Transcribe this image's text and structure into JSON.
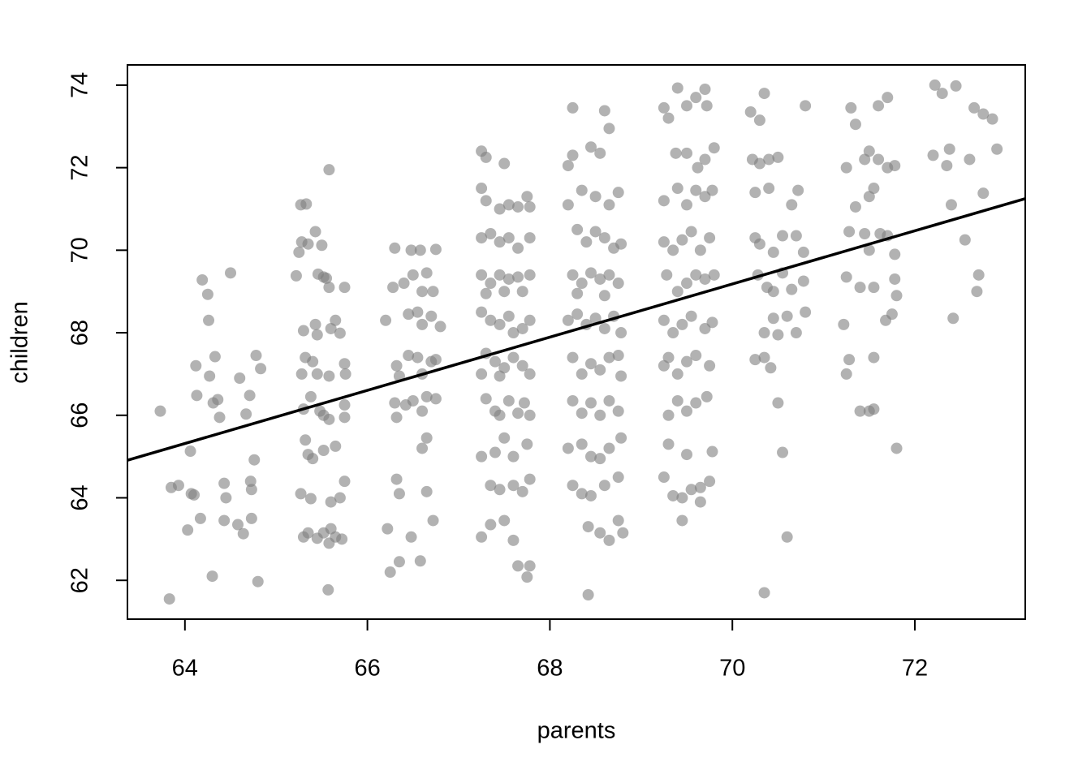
{
  "chart_data": {
    "type": "scatter",
    "x_label": "parents",
    "y_label": "children",
    "xlim": [
      63.37,
      73.21
    ],
    "ylim": [
      61.06,
      74.49
    ],
    "xticks": [
      64,
      66,
      68,
      70,
      72
    ],
    "yticks": [
      62,
      64,
      66,
      68,
      70,
      72,
      74
    ],
    "color": "#7f7f7f",
    "x": [
      63.73,
      63.83,
      63.85,
      63.93,
      64.03,
      64.06,
      64.07,
      64.1,
      64.12,
      64.13,
      64.17,
      64.19,
      64.25,
      64.26,
      64.27,
      64.3,
      64.31,
      64.33,
      64.36,
      64.38,
      64.43,
      64.45,
      64.43,
      64.5,
      64.6,
      64.58,
      64.64,
      64.67,
      64.71,
      64.72,
      64.73,
      64.73,
      64.76,
      64.78,
      64.8,
      64.83,
      65.27,
      65.33,
      65.28,
      65.25,
      65.22,
      65.35,
      65.43,
      65.5,
      65.46,
      65.52,
      65.55,
      65.58,
      65.75,
      65.58,
      65.3,
      65.43,
      65.45,
      65.6,
      65.65,
      65.7,
      65.32,
      65.4,
      65.28,
      65.45,
      65.58,
      65.75,
      65.76,
      65.3,
      65.38,
      65.48,
      65.52,
      65.58,
      65.75,
      65.75,
      65.32,
      65.35,
      65.4,
      65.52,
      65.65,
      65.27,
      65.38,
      65.6,
      65.7,
      65.75,
      65.3,
      65.35,
      65.45,
      65.52,
      65.6,
      65.65,
      65.72,
      65.58,
      65.57,
      66.3,
      66.48,
      66.58,
      66.75,
      66.28,
      66.4,
      66.5,
      66.6,
      66.65,
      66.72,
      66.2,
      66.45,
      66.55,
      66.6,
      66.7,
      66.8,
      66.32,
      66.45,
      66.55,
      66.6,
      66.7,
      66.75,
      66.35,
      66.3,
      66.42,
      66.5,
      66.6,
      66.65,
      66.75,
      66.32,
      66.6,
      66.65,
      66.32,
      66.35,
      66.65,
      66.22,
      66.48,
      66.72,
      66.35,
      66.25,
      66.58,
      67.25,
      67.3,
      67.5,
      67.25,
      67.3,
      67.45,
      67.55,
      67.65,
      67.75,
      67.78,
      67.25,
      67.35,
      67.45,
      67.55,
      67.65,
      67.78,
      67.25,
      67.35,
      67.45,
      67.55,
      67.65,
      67.7,
      67.78,
      67.3,
      67.5,
      67.25,
      67.35,
      67.45,
      67.55,
      67.6,
      67.7,
      67.78,
      67.3,
      67.4,
      67.5,
      67.6,
      67.7,
      67.78,
      67.25,
      67.45,
      67.3,
      67.4,
      67.45,
      67.55,
      67.65,
      67.72,
      67.78,
      67.25,
      67.4,
      67.5,
      67.6,
      67.75,
      67.35,
      67.45,
      67.6,
      67.7,
      67.78,
      67.25,
      67.35,
      67.5,
      67.6,
      67.65,
      67.75,
      67.78,
      68.25,
      68.6,
      68.65,
      68.2,
      68.25,
      68.45,
      68.55,
      68.2,
      68.35,
      68.5,
      68.65,
      68.75,
      68.3,
      68.4,
      68.5,
      68.6,
      68.7,
      68.78,
      68.25,
      68.35,
      68.45,
      68.55,
      68.65,
      68.75,
      68.3,
      68.6,
      68.2,
      68.3,
      68.4,
      68.5,
      68.6,
      68.7,
      68.78,
      68.25,
      68.35,
      68.45,
      68.55,
      68.65,
      68.75,
      68.78,
      68.25,
      68.35,
      68.45,
      68.55,
      68.65,
      68.75,
      68.2,
      68.35,
      68.45,
      68.55,
      68.65,
      68.78,
      68.25,
      68.35,
      68.45,
      68.6,
      68.75,
      68.42,
      68.55,
      68.65,
      68.75,
      68.8,
      68.42,
      69.4,
      69.7,
      69.25,
      69.3,
      69.5,
      69.6,
      69.72,
      69.38,
      69.5,
      69.62,
      69.7,
      69.8,
      69.25,
      69.4,
      69.5,
      69.6,
      69.7,
      69.78,
      69.25,
      69.35,
      69.45,
      69.55,
      69.65,
      69.75,
      69.28,
      69.4,
      69.5,
      69.6,
      69.7,
      69.8,
      69.25,
      69.35,
      69.45,
      69.55,
      69.7,
      69.78,
      69.25,
      69.3,
      69.4,
      69.5,
      69.6,
      69.75,
      69.3,
      69.4,
      69.5,
      69.6,
      69.72,
      69.3,
      69.5,
      69.78,
      69.25,
      69.35,
      69.45,
      69.55,
      69.65,
      69.75,
      69.65,
      69.45,
      70.2,
      70.35,
      70.3,
      70.8,
      70.22,
      70.3,
      70.4,
      70.5,
      70.25,
      70.4,
      70.65,
      70.72,
      70.25,
      70.3,
      70.45,
      70.55,
      70.7,
      70.78,
      70.28,
      70.38,
      70.45,
      70.55,
      70.65,
      70.78,
      70.35,
      70.45,
      70.5,
      70.6,
      70.7,
      70.8,
      70.25,
      70.35,
      70.42,
      70.5,
      70.55,
      70.6,
      70.35,
      71.3,
      71.35,
      71.6,
      71.7,
      71.25,
      71.45,
      71.5,
      71.6,
      71.7,
      71.78,
      71.35,
      71.5,
      71.55,
      71.62,
      71.28,
      71.45,
      71.5,
      71.7,
      71.78,
      71.25,
      71.4,
      71.55,
      71.78,
      71.8,
      71.22,
      71.68,
      71.75,
      71.25,
      71.28,
      71.55,
      71.4,
      71.5,
      71.55,
      71.8,
      72.22,
      72.3,
      72.45,
      72.65,
      72.75,
      72.85,
      72.2,
      72.35,
      72.38,
      72.6,
      72.9,
      72.75,
      72.4,
      72.55,
      72.7,
      72.68,
      72.42
    ],
    "y": [
      66.1,
      61.55,
      64.25,
      64.3,
      63.22,
      65.13,
      64.1,
      64.07,
      67.2,
      66.48,
      63.5,
      69.28,
      68.93,
      68.3,
      66.95,
      62.1,
      66.3,
      67.42,
      66.38,
      65.95,
      64.35,
      64.0,
      63.45,
      69.45,
      66.9,
      63.35,
      63.13,
      66.03,
      66.48,
      64.4,
      64.2,
      63.5,
      64.92,
      67.45,
      61.97,
      67.13,
      71.1,
      71.12,
      70.2,
      69.95,
      69.38,
      70.15,
      70.45,
      70.12,
      69.42,
      69.35,
      69.32,
      69.1,
      69.1,
      71.95,
      68.05,
      68.2,
      67.95,
      68.1,
      68.3,
      67.99,
      67.4,
      67.3,
      67.0,
      67.0,
      66.95,
      67.25,
      67.0,
      66.15,
      66.45,
      66.1,
      66.0,
      65.9,
      66.25,
      65.95,
      65.4,
      65.05,
      64.95,
      65.15,
      65.25,
      64.1,
      63.98,
      63.9,
      64.0,
      64.4,
      63.05,
      63.15,
      63.02,
      63.15,
      63.25,
      63.05,
      63.0,
      62.9,
      61.77,
      70.05,
      70.0,
      70.0,
      70.02,
      69.1,
      69.2,
      69.4,
      69.0,
      69.45,
      69.0,
      68.3,
      68.45,
      68.5,
      68.2,
      68.4,
      68.15,
      67.2,
      67.45,
      67.4,
      67.0,
      67.3,
      67.35,
      66.95,
      66.3,
      66.25,
      66.35,
      66.1,
      66.45,
      66.4,
      65.95,
      65.2,
      65.45,
      64.45,
      64.1,
      64.15,
      63.25,
      63.05,
      63.45,
      62.45,
      62.2,
      62.47,
      72.4,
      72.25,
      72.1,
      71.5,
      71.2,
      71.0,
      71.1,
      71.05,
      71.3,
      71.05,
      70.3,
      70.4,
      70.2,
      70.3,
      70.05,
      70.3,
      69.4,
      69.2,
      69.4,
      69.3,
      69.35,
      69.0,
      69.4,
      68.95,
      69.0,
      68.5,
      68.3,
      68.2,
      68.4,
      68.0,
      68.1,
      68.3,
      67.5,
      67.3,
      67.15,
      67.4,
      67.2,
      67.0,
      67.0,
      66.95,
      66.4,
      66.1,
      66.0,
      66.35,
      66.05,
      66.3,
      66.0,
      65.0,
      65.1,
      65.45,
      65.0,
      65.3,
      64.3,
      64.2,
      64.3,
      64.15,
      64.45,
      63.05,
      63.35,
      63.45,
      62.97,
      62.35,
      62.08,
      62.35,
      73.45,
      73.38,
      72.95,
      72.05,
      72.3,
      72.5,
      72.35,
      71.1,
      71.45,
      71.3,
      71.1,
      71.4,
      70.5,
      70.2,
      70.45,
      70.3,
      70.05,
      70.15,
      69.4,
      69.2,
      69.45,
      69.3,
      69.4,
      69.2,
      68.95,
      68.9,
      68.3,
      68.45,
      68.2,
      68.35,
      68.1,
      68.4,
      68.0,
      67.4,
      67.0,
      67.25,
      67.1,
      67.4,
      67.45,
      66.95,
      66.35,
      66.05,
      66.3,
      66.0,
      66.35,
      66.1,
      65.2,
      65.3,
      65.0,
      64.95,
      65.2,
      65.45,
      64.3,
      64.1,
      64.05,
      64.3,
      64.5,
      63.3,
      63.15,
      62.97,
      63.45,
      63.15,
      61.65,
      73.93,
      73.9,
      73.45,
      73.2,
      73.5,
      73.7,
      73.5,
      72.35,
      72.35,
      72.0,
      72.2,
      72.48,
      71.2,
      71.5,
      71.1,
      71.45,
      71.3,
      71.45,
      70.2,
      70.0,
      70.25,
      70.45,
      70.0,
      70.3,
      69.4,
      69.0,
      69.2,
      69.4,
      69.3,
      69.4,
      68.3,
      68.0,
      68.2,
      68.4,
      68.1,
      68.25,
      67.2,
      67.4,
      67.0,
      67.3,
      67.45,
      67.2,
      66.0,
      66.35,
      66.1,
      66.3,
      66.45,
      65.3,
      65.05,
      65.12,
      64.5,
      64.05,
      64.0,
      64.2,
      64.25,
      64.4,
      63.9,
      63.45,
      73.35,
      73.8,
      73.15,
      73.5,
      72.2,
      72.1,
      72.2,
      72.25,
      71.4,
      71.5,
      71.1,
      71.45,
      70.3,
      70.15,
      69.95,
      70.35,
      70.35,
      69.95,
      69.4,
      69.1,
      69.0,
      69.45,
      69.05,
      69.25,
      68.0,
      68.35,
      67.95,
      68.4,
      68.0,
      68.5,
      67.35,
      67.4,
      67.15,
      66.3,
      65.1,
      63.05,
      61.7,
      73.45,
      73.05,
      73.5,
      73.7,
      72.0,
      72.2,
      72.4,
      72.2,
      72.0,
      72.05,
      71.05,
      71.3,
      71.5,
      70.4,
      70.45,
      70.4,
      70.0,
      70.35,
      69.9,
      69.35,
      69.1,
      69.1,
      69.3,
      68.9,
      68.2,
      68.3,
      68.45,
      67.0,
      67.35,
      67.4,
      66.1,
      66.1,
      66.15,
      65.2,
      74.0,
      73.8,
      73.98,
      73.45,
      73.3,
      73.18,
      72.3,
      72.05,
      72.45,
      72.2,
      72.45,
      71.38,
      71.1,
      70.25,
      69.4,
      69.0,
      68.35
    ],
    "fit": {
      "x": [
        63.37,
        73.21
      ],
      "y": [
        64.91,
        71.25
      ],
      "color": "#000000"
    }
  }
}
